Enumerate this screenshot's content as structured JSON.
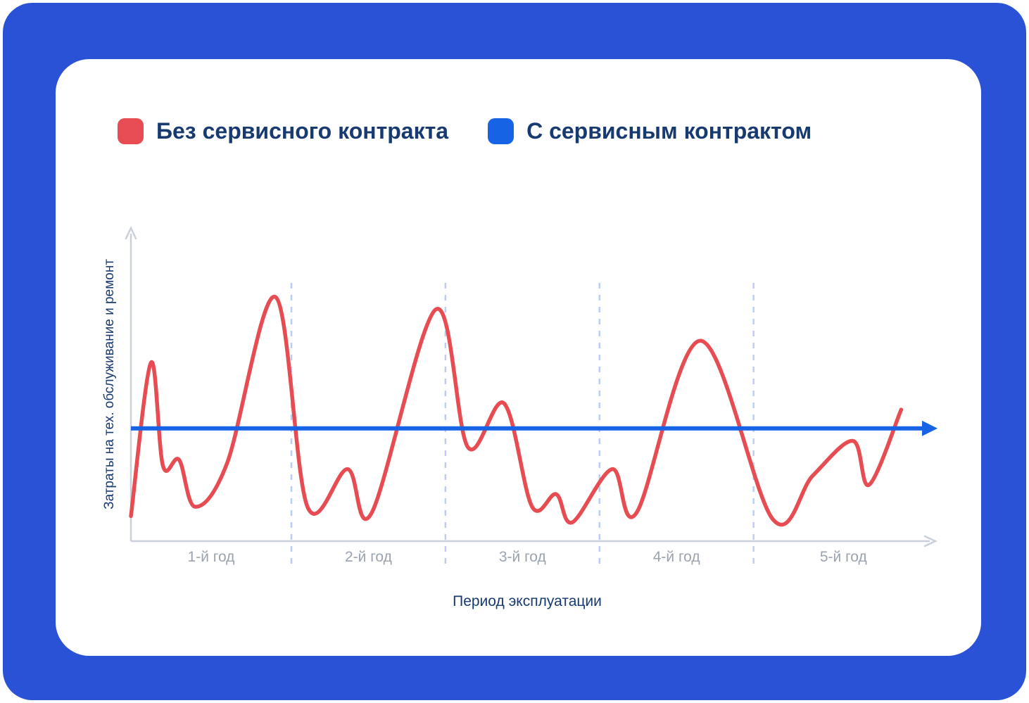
{
  "frame": {
    "color": "#2a52d7"
  },
  "card": {
    "color": "#ffffff"
  },
  "legend": {
    "text_color": "#173a70",
    "items": [
      {
        "label": "Без сервисного контракта",
        "color": "#e64c51"
      },
      {
        "label": "С сервисным контрактом",
        "color": "#1763e6"
      }
    ]
  },
  "chart_data": {
    "type": "line",
    "title": "",
    "xlabel": "Период эксплуатации",
    "ylabel": "Затраты на тех. обслуживание и ремонт",
    "x_categories": [
      "1-й год",
      "2-й год",
      "3-й год",
      "4-й год",
      "5-й год"
    ],
    "x_range": [
      0,
      100
    ],
    "y_range": [
      0,
      100
    ],
    "legend_position": "top",
    "axis_color": "#c9d0d9",
    "tick_label_color": "#9aa3af",
    "axis_title_color": "#173a70",
    "grid": {
      "year_dividers_x": [
        20,
        39.2,
        58.4,
        77.6
      ],
      "style": "dashed",
      "color": "#bccdf4"
    },
    "series": [
      {
        "name": "Без сервисного контракта",
        "line_type": "smooth-fluctuating",
        "color": "#e64c51",
        "points": [
          [
            0,
            8
          ],
          [
            2.5,
            57
          ],
          [
            4,
            24
          ],
          [
            6,
            26
          ],
          [
            8,
            11
          ],
          [
            12,
            25
          ],
          [
            18,
            78
          ],
          [
            22,
            11
          ],
          [
            27,
            23
          ],
          [
            30,
            9
          ],
          [
            38,
            74
          ],
          [
            42,
            30
          ],
          [
            46.5,
            44
          ],
          [
            50,
            11
          ],
          [
            53,
            15
          ],
          [
            55,
            6
          ],
          [
            60,
            23
          ],
          [
            63,
            9
          ],
          [
            71,
            64
          ],
          [
            80,
            7
          ],
          [
            85,
            21
          ],
          [
            90,
            32
          ],
          [
            92,
            18
          ],
          [
            96,
            42
          ]
        ]
      },
      {
        "name": "С сервисным контрактом",
        "line_type": "flat-arrow",
        "color": "#1763e6",
        "value": 36,
        "x_start": 0,
        "x_end": 100
      }
    ]
  }
}
